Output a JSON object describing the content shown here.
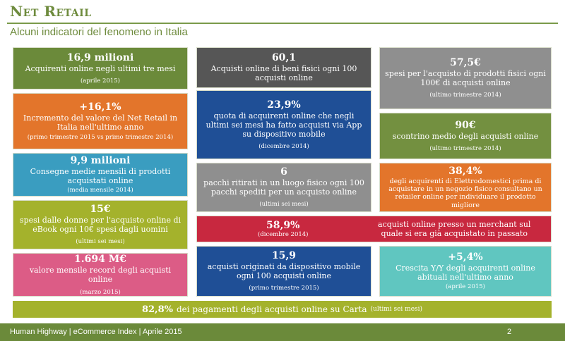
{
  "header": {
    "title": "Net Retail",
    "subtitle": "Alcuni indicatori del fenomeno in Italia"
  },
  "tiles": {
    "acquirenti": {
      "value": "16,9 milioni",
      "text": "Acquirenti online negli ultimi tre mesi",
      "note": "(aprile 2015)"
    },
    "incremento": {
      "value": "+16,1%",
      "text": "Incremento del valore del Net Retail in Italia nell'ultimo anno",
      "note": "(primo trimestre 2015 vs primo trimestre 2014)"
    },
    "consegne": {
      "value": "9,9 milioni",
      "text": "Consegne medie mensili di prodotti acquistati online",
      "note": "(media mensile 2014)"
    },
    "ebook": {
      "value": "15€",
      "text": "spesi dalle donne per l'acquisto online di eBook ogni 10€ spesi dagli uomini",
      "note": "(ultimi sei mesi)"
    },
    "record": {
      "value": "1.694 M€",
      "text": "valore mensile record degli acquisti online",
      "note": "(marzo 2015)"
    },
    "beni_fisici": {
      "value": "60,1",
      "text": "Acquisti online di beni fisici ogni 100 acquisti online"
    },
    "app": {
      "value": "23,9%",
      "text": "quota di acquirenti online che negli ultimi sei mesi ha fatto acquisti via App su dispositivo mobile",
      "note": "(dicembre 2014)"
    },
    "pacchi": {
      "value": "6",
      "text": "pacchi ritirati in un luogo fisico ogni 100 pacchi spediti per un acquisto online",
      "note": "(ultimi sei mesi)"
    },
    "merchant": {
      "value": "58,9%",
      "note": "(dicembre 2014)",
      "text": "acquisti online presso un merchant sul quale si era già acquistato in passato"
    },
    "mobile": {
      "value": "15,9",
      "text": "acquisti originati da dispositivo mobile ogni 100 acquisti online",
      "note": "(primo trimestre 2015)"
    },
    "spesi": {
      "value": "57,5€",
      "text": "spesi per l'acquisto di prodotti fisici ogni 100€ di acquisti online",
      "note": "(ultimo trimestre 2014)"
    },
    "scontrino": {
      "value": "90€",
      "text": "scontrino medio degli acquisti online",
      "note": "(ultimo trimestre 2014)"
    },
    "elettro": {
      "value": "38,4%",
      "text_small": "degli acquirenti di Elettrodomestici prima di acquistare in un negozio fisico consultano un retailer online per individuare il prodotto migliore"
    },
    "crescita": {
      "value": "+5,4%",
      "text": "Crescita Y/Y degli acquirenti online abituali nell'ultimo anno",
      "note": "(aprile 2015)"
    }
  },
  "strip": {
    "value": "82,8%",
    "text": "dei pagamenti degli acquisti online su Carta",
    "note": "(ultimi sei mesi)"
  },
  "footer": {
    "text": "Human Highway | eCommerce Index | Aprile 2015",
    "page": "2"
  },
  "colors": {
    "olive": "#6b8a3a",
    "grey": "#565656",
    "orange": "#e3752b",
    "blue": "#1f4f96",
    "teal": "#3a9dc0",
    "lime": "#a4b22c",
    "pink": "#dc5c86",
    "red": "#c8283f",
    "cyan": "#60c6c0"
  }
}
